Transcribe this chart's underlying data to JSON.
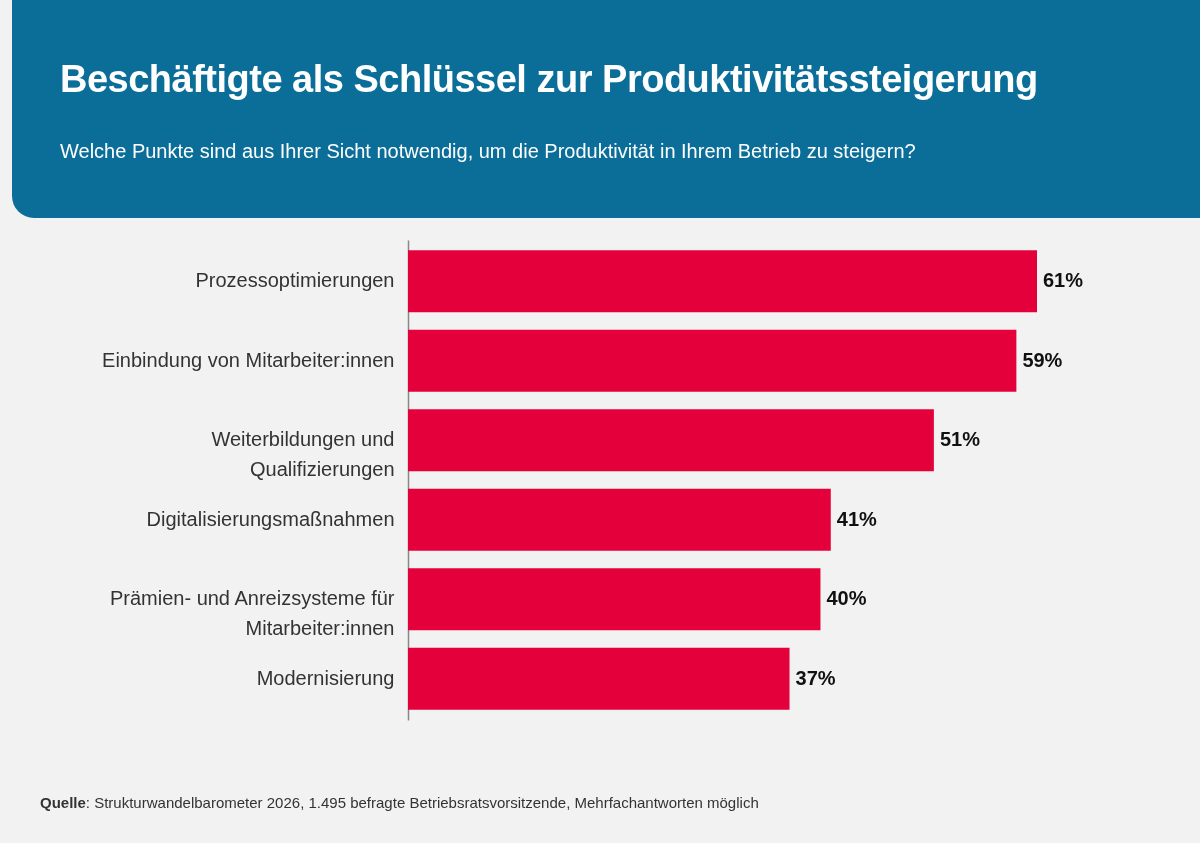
{
  "chart_data": {
    "type": "bar",
    "orientation": "horizontal",
    "title": "Beschäftigte als Schlüssel zur Produktivitätssteigerung",
    "subtitle": "Welche Punkte sind aus Ihrer Sicht notwendig, um die Produktivität in Ihrem Betrieb zu steigern?",
    "categories": [
      "Prozessoptimierungen",
      "Einbindung von Mitarbeiter:innen",
      "Weiterbildungen und Qualifizierungen",
      "Digitalisierungsmaßnahmen",
      "Prämien- und Anreizsysteme für Mitarbeiter:innen",
      "Modernisierung"
    ],
    "values": [
      61,
      59,
      51,
      41,
      40,
      37
    ],
    "value_labels": [
      "61%",
      "59%",
      "51%",
      "41%",
      "40%",
      "37%"
    ],
    "color": "#e4003a",
    "annotations": [
      "Quelle: Strukturwandelbarometer 2026, 1.495 befragte Betriebsratsvorsitzende, Mehrfachantworten möglich"
    ]
  }
}
